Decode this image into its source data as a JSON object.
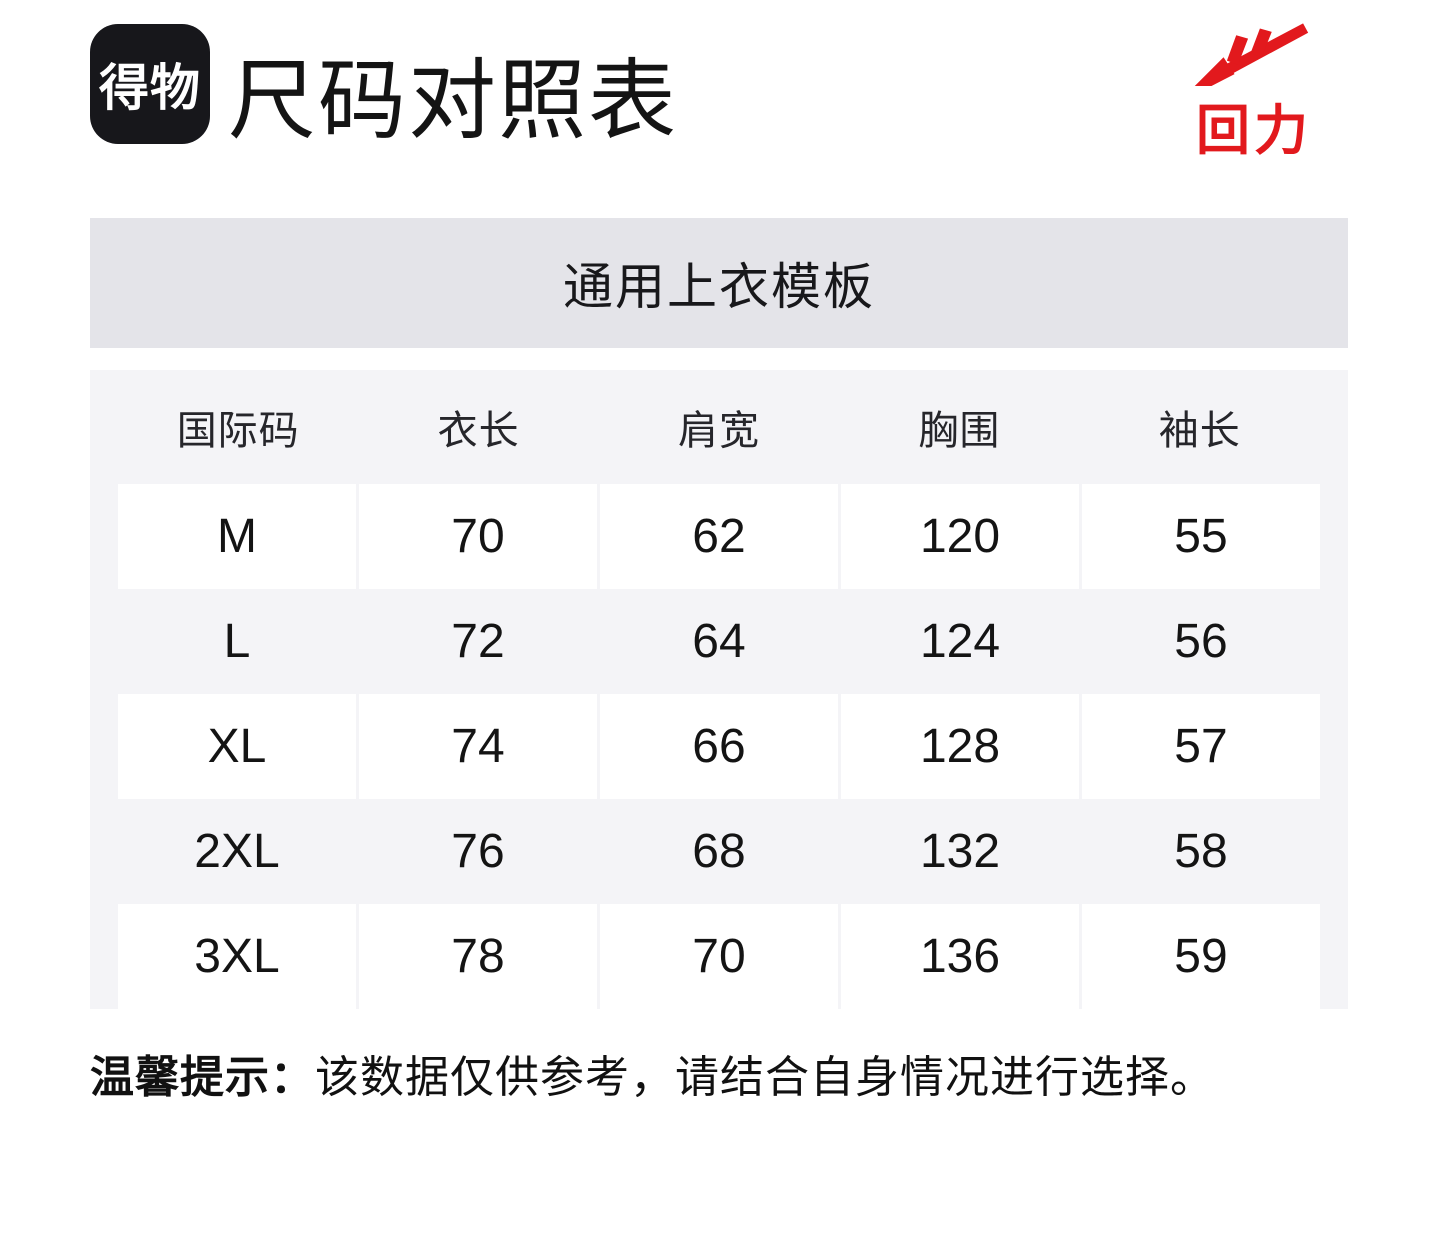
{
  "header": {
    "app_badge_text": "得物",
    "page_title": "尺码对照表",
    "brand_name": "回力"
  },
  "chart_data": {
    "type": "table",
    "title": "通用上衣模板",
    "columns": [
      "国际码",
      "衣长",
      "肩宽",
      "胸围",
      "袖长"
    ],
    "rows": [
      [
        "M",
        "70",
        "62",
        "120",
        "55"
      ],
      [
        "L",
        "72",
        "64",
        "124",
        "56"
      ],
      [
        "XL",
        "74",
        "66",
        "128",
        "57"
      ],
      [
        "2XL",
        "76",
        "68",
        "132",
        "58"
      ],
      [
        "3XL",
        "78",
        "70",
        "136",
        "59"
      ]
    ],
    "layout": {
      "row_striping": "white rows alternate with light-gray rows",
      "grid": "off"
    }
  },
  "footer": {
    "tip_label": "温馨提示：",
    "tip_text": "该数据仅供参考，请结合自身情况进行选择。"
  },
  "colors": {
    "brand_red": "#E2191D",
    "badge_bg": "#17171B",
    "banner_bg": "#E4E4E9",
    "table_bg": "#F4F4F7",
    "row_white": "#FFFFFF",
    "text_primary": "#141414"
  },
  "icons": {
    "app_badge": "dewu-app-logo",
    "brand": "warrior-swoosh-arrow-icon"
  }
}
